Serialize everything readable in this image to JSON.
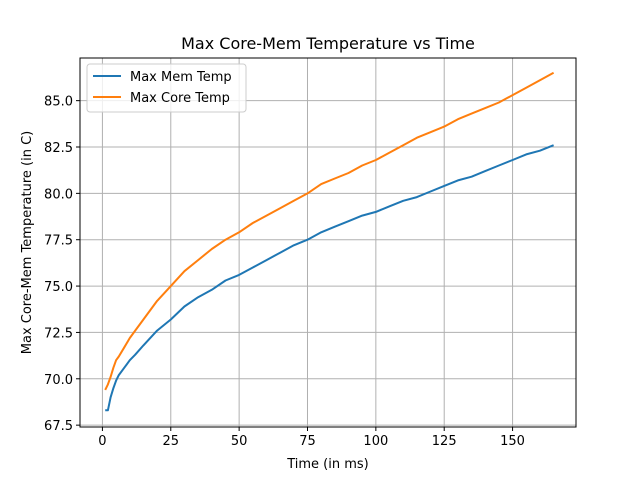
{
  "chart_data": {
    "type": "line",
    "title": "Max Core-Mem Temperature vs Time",
    "xlabel": "Time (in ms)",
    "ylabel": "Max Core-Mem Temperature (in C)",
    "xlim": [
      -8.2,
      173.2
    ],
    "ylim": [
      67.4,
      87.3
    ],
    "xticks": [
      0,
      25,
      50,
      75,
      100,
      125,
      150
    ],
    "xtick_labels": [
      "0",
      "25",
      "50",
      "75",
      "100",
      "125",
      "150"
    ],
    "yticks": [
      67.5,
      70.0,
      72.5,
      75.0,
      77.5,
      80.0,
      82.5,
      85.0
    ],
    "ytick_labels": [
      "67.5",
      "70.0",
      "72.5",
      "75.0",
      "77.5",
      "80.0",
      "82.5",
      "85.0"
    ],
    "grid": true,
    "legend_position": "top-left",
    "series": [
      {
        "name": "Max Mem Temp",
        "color": "#1f77b4",
        "x": [
          1,
          2,
          3,
          4,
          5,
          6,
          8,
          10,
          12,
          15,
          20,
          25,
          30,
          35,
          40,
          45,
          50,
          55,
          60,
          65,
          70,
          75,
          80,
          85,
          90,
          95,
          100,
          105,
          110,
          115,
          120,
          125,
          130,
          135,
          140,
          145,
          150,
          155,
          160,
          165
        ],
        "y": [
          68.3,
          68.3,
          69.0,
          69.5,
          69.9,
          70.2,
          70.6,
          71.0,
          71.3,
          71.8,
          72.6,
          73.2,
          73.9,
          74.4,
          74.8,
          75.3,
          75.6,
          76.0,
          76.4,
          76.8,
          77.2,
          77.5,
          77.9,
          78.2,
          78.5,
          78.8,
          79.0,
          79.3,
          79.6,
          79.8,
          80.1,
          80.4,
          80.7,
          80.9,
          81.2,
          81.5,
          81.8,
          82.1,
          82.3,
          82.6
        ]
      },
      {
        "name": "Max Core Temp",
        "color": "#ff7f0e",
        "x": [
          1,
          2,
          3,
          4,
          5,
          6,
          8,
          10,
          12,
          15,
          20,
          25,
          30,
          35,
          40,
          45,
          50,
          55,
          60,
          65,
          70,
          75,
          80,
          85,
          90,
          95,
          100,
          105,
          110,
          115,
          120,
          125,
          130,
          135,
          140,
          145,
          150,
          155,
          160,
          165
        ],
        "y": [
          69.4,
          69.7,
          70.1,
          70.6,
          71.0,
          71.2,
          71.7,
          72.2,
          72.6,
          73.2,
          74.2,
          75.0,
          75.8,
          76.4,
          77.0,
          77.5,
          77.9,
          78.4,
          78.8,
          79.2,
          79.6,
          80.0,
          80.5,
          80.8,
          81.1,
          81.5,
          81.8,
          82.2,
          82.6,
          83.0,
          83.3,
          83.6,
          84.0,
          84.3,
          84.6,
          84.9,
          85.3,
          85.7,
          86.1,
          86.5
        ]
      }
    ]
  }
}
